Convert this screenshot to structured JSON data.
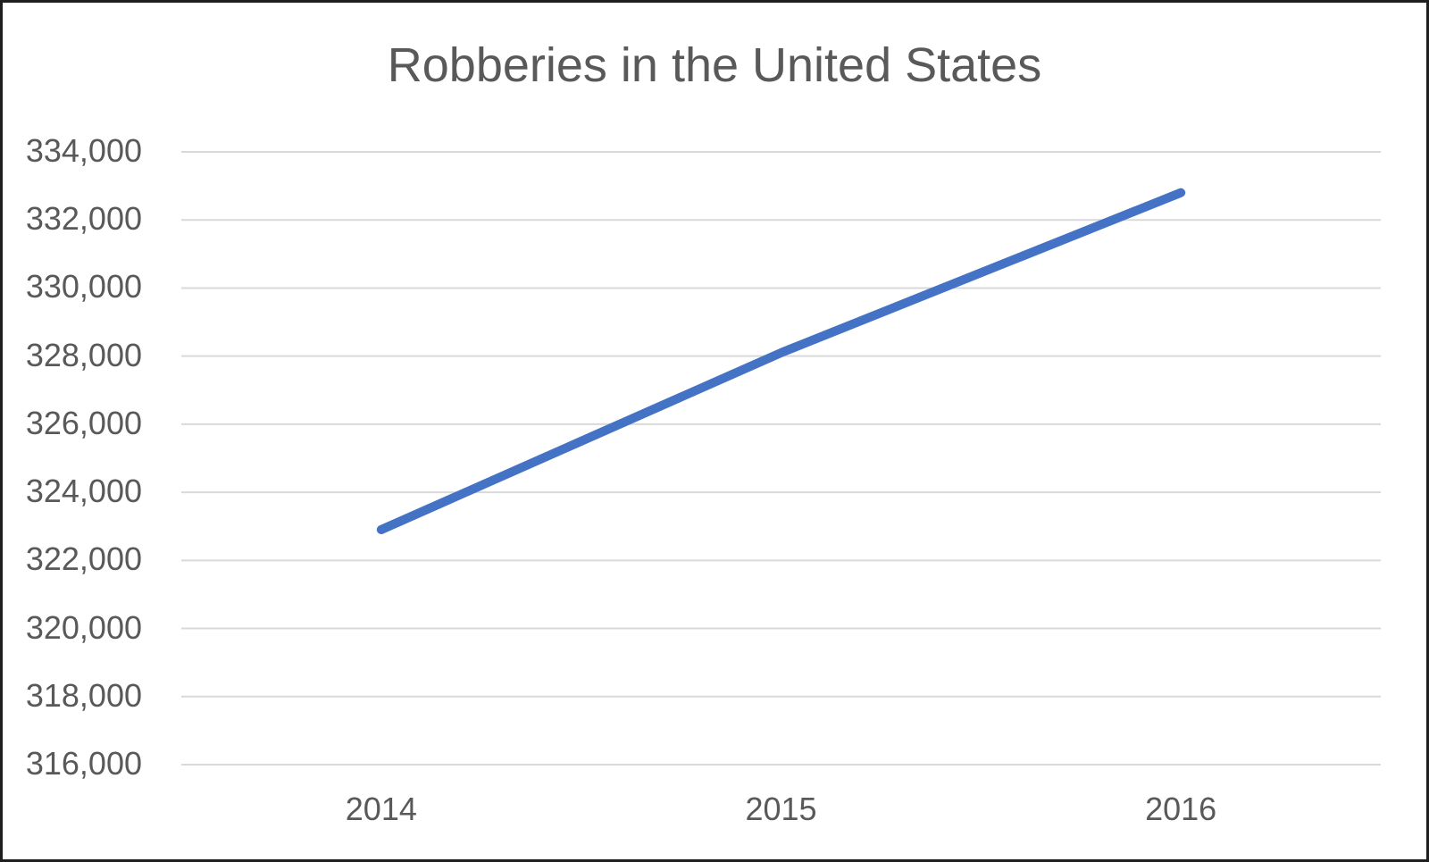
{
  "chart_data": {
    "type": "line",
    "title": "Robberies in the United States",
    "categories": [
      "2014",
      "2015",
      "2016"
    ],
    "series": [
      {
        "name": "Robberies",
        "values": [
          322900,
          328100,
          332800
        ]
      }
    ],
    "xlabel": "",
    "ylabel": "",
    "ylim": [
      316000,
      334000
    ],
    "ytick_step": 2000,
    "yticks": [
      {
        "value": 316000,
        "label": "316,000"
      },
      {
        "value": 318000,
        "label": "318,000"
      },
      {
        "value": 320000,
        "label": "320,000"
      },
      {
        "value": 322000,
        "label": "322,000"
      },
      {
        "value": 324000,
        "label": "324,000"
      },
      {
        "value": 326000,
        "label": "326,000"
      },
      {
        "value": 328000,
        "label": "328,000"
      },
      {
        "value": 330000,
        "label": "330,000"
      },
      {
        "value": 332000,
        "label": "332,000"
      },
      {
        "value": 334000,
        "label": "334,000"
      }
    ],
    "grid": "horizontal",
    "legend": "none",
    "colors": {
      "line": "#4472C4",
      "gridline": "#D9D9D9",
      "axis_text": "#595959",
      "title_text": "#595959",
      "background": "#FFFFFF",
      "frame_border": "#1F1F1F"
    }
  }
}
